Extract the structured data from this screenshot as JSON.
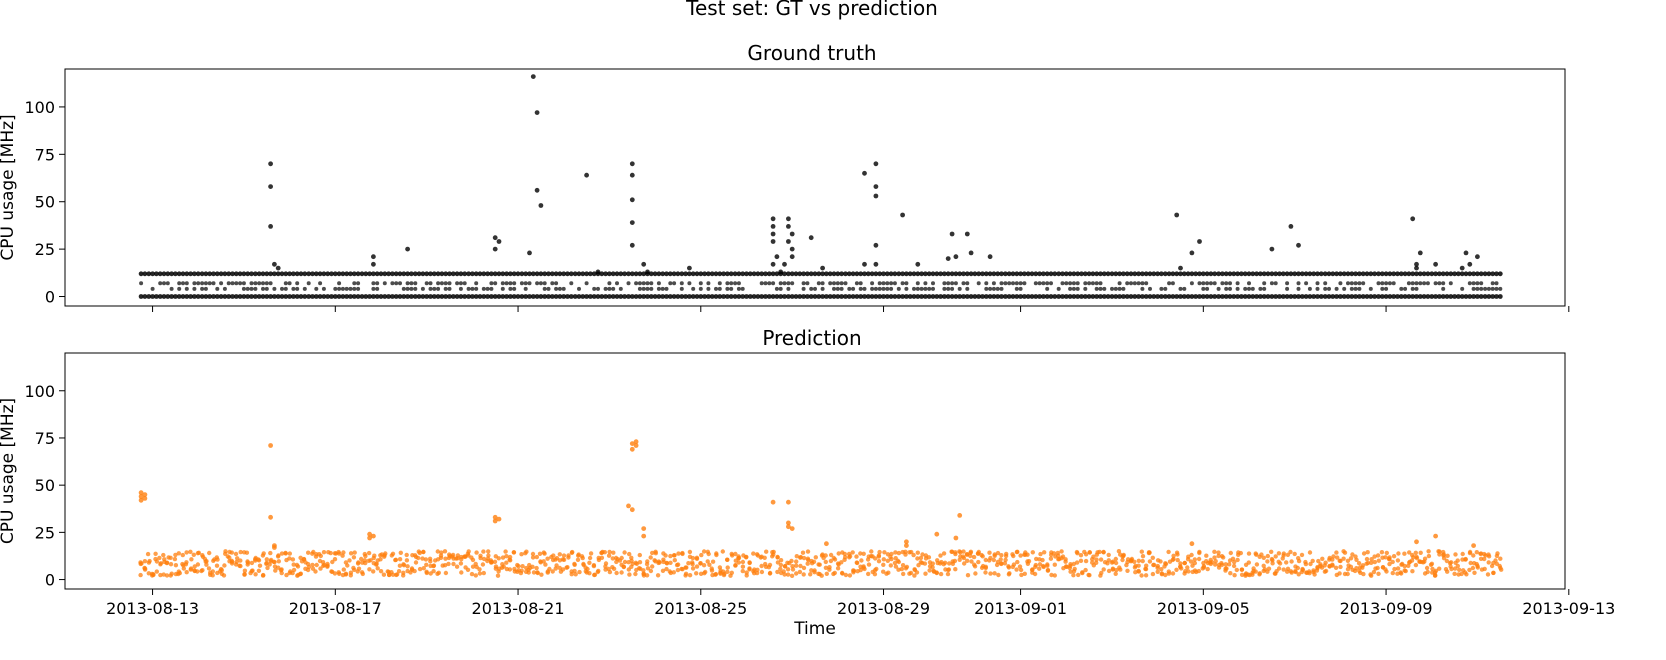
{
  "figure": {
    "suptitle": "Test set: GT vs prediction"
  },
  "chart_data": [
    {
      "type": "scatter",
      "title": "Ground truth",
      "xlabel": "",
      "ylabel": "CPU usage [MHz]",
      "ylim": [
        -5,
        120
      ],
      "xlim": [
        "2013-08-11T02:00",
        "2013-09-12T22:00"
      ],
      "yticks": [
        0,
        25,
        50,
        75,
        100
      ],
      "xticks": [
        "2013-08-13",
        "2013-08-17",
        "2013-08-21",
        "2013-08-25",
        "2013-08-29",
        "2013-09-01",
        "2013-09-05",
        "2013-09-09",
        "2013-09-13"
      ],
      "xtick_labels_visible": false,
      "grid": false,
      "legend": "none",
      "point_color": "#000000",
      "data_range_x": [
        "2013-08-12T18:00",
        "2013-09-11T12:00"
      ],
      "baseline_levels": [
        0,
        12
      ],
      "intermediate_levels": [
        4,
        7
      ],
      "series": [
        {
          "name": "",
          "x": [
            "2013-08-15T14:00",
            "2013-08-15T14:00",
            "2013-08-15T14:00",
            "2013-08-15T16:00",
            "2013-08-15T18:00",
            "2013-08-17T20:00",
            "2013-08-17T20:00",
            "2013-08-18T14:00",
            "2013-08-20T12:00",
            "2013-08-20T12:00",
            "2013-08-20T14:00",
            "2013-08-21T08:00",
            "2013-08-21T10:00",
            "2013-08-21T10:00",
            "2013-08-21T12:00",
            "2013-08-21T06:00",
            "2013-08-22T12:00",
            "2013-08-22T18:00",
            "2013-08-23T12:00",
            "2013-08-23T12:00",
            "2013-08-23T12:00",
            "2013-08-23T12:00",
            "2013-08-23T12:00",
            "2013-08-23T18:00",
            "2013-08-23T20:00",
            "2013-08-24T18:00",
            "2013-08-26T14:00",
            "2013-08-26T14:00",
            "2013-08-26T14:00",
            "2013-08-26T14:00",
            "2013-08-26T14:00",
            "2013-08-26T16:00",
            "2013-08-26T22:00",
            "2013-08-26T22:00",
            "2013-08-26T22:00",
            "2013-08-27T00:00",
            "2013-08-27T00:00",
            "2013-08-27T00:00",
            "2013-08-26T20:00",
            "2013-08-26T18:00",
            "2013-08-27T10:00",
            "2013-08-27T16:00",
            "2013-08-28T14:00",
            "2013-08-28T14:00",
            "2013-08-28T20:00",
            "2013-08-28T20:00",
            "2013-08-28T20:00",
            "2013-08-28T20:00",
            "2013-08-28T20:00",
            "2013-08-29T10:00",
            "2013-08-29T18:00",
            "2013-08-30T10:00",
            "2013-08-30T12:00",
            "2013-08-30T14:00",
            "2013-08-30T20:00",
            "2013-08-30T22:00",
            "2013-08-31T08:00",
            "2013-09-04T10:00",
            "2013-09-04T12:00",
            "2013-09-04T18:00",
            "2013-09-04T22:00",
            "2013-09-06T12:00",
            "2013-09-06T22:00",
            "2013-09-07T02:00",
            "2013-09-09T14:00",
            "2013-09-09T16:00",
            "2013-09-09T16:00",
            "2013-09-09T18:00",
            "2013-09-10T02:00",
            "2013-09-10T16:00",
            "2013-09-10T18:00",
            "2013-09-10T20:00",
            "2013-09-11T00:00"
          ],
          "y": [
            70,
            58,
            37,
            17,
            15,
            17,
            21,
            25,
            31,
            25,
            29,
            116,
            97,
            56,
            48,
            23,
            64,
            13,
            70,
            64,
            51,
            39,
            27,
            17,
            13,
            15,
            17,
            29,
            33,
            37,
            41,
            21,
            41,
            37,
            29,
            33,
            25,
            21,
            17,
            13,
            31,
            15,
            65,
            17,
            70,
            58,
            53,
            27,
            17,
            43,
            17,
            20,
            33,
            21,
            33,
            23,
            21,
            43,
            15,
            23,
            29,
            25,
            37,
            27,
            41,
            17,
            15,
            23,
            17,
            15,
            23,
            17,
            21
          ]
        }
      ]
    },
    {
      "type": "scatter",
      "title": "Prediction",
      "xlabel": "Time",
      "ylabel": "CPU usage [MHz]",
      "ylim": [
        -5,
        120
      ],
      "xlim": [
        "2013-08-11T02:00",
        "2013-09-12T22:00"
      ],
      "yticks": [
        0,
        25,
        50,
        75,
        100
      ],
      "xticks": [
        "2013-08-13",
        "2013-08-17",
        "2013-08-21",
        "2013-08-25",
        "2013-08-29",
        "2013-09-01",
        "2013-09-05",
        "2013-09-09",
        "2013-09-13"
      ],
      "xtick_labels_visible": true,
      "grid": false,
      "legend": "none",
      "point_color": "#ff7f0e",
      "data_range_x": [
        "2013-08-12T18:00",
        "2013-09-11T12:00"
      ],
      "baseline_band": [
        2,
        15
      ],
      "series": [
        {
          "name": "",
          "x": [
            "2013-08-12T18:00",
            "2013-08-12T18:00",
            "2013-08-12T18:00",
            "2013-08-12T20:00",
            "2013-08-12T20:00",
            "2013-08-15T14:00",
            "2013-08-15T14:00",
            "2013-08-15T16:00",
            "2013-08-15T16:00",
            "2013-08-17T18:00",
            "2013-08-17T18:00",
            "2013-08-17T20:00",
            "2013-08-20T12:00",
            "2013-08-20T12:00",
            "2013-08-20T14:00",
            "2013-08-23T12:00",
            "2013-08-23T12:00",
            "2013-08-23T14:00",
            "2013-08-23T14:00",
            "2013-08-23T10:00",
            "2013-08-23T12:00",
            "2013-08-23T18:00",
            "2013-08-23T18:00",
            "2013-08-26T14:00",
            "2013-08-26T22:00",
            "2013-08-26T22:00",
            "2013-08-26T22:00",
            "2013-08-27T00:00",
            "2013-08-27T18:00",
            "2013-08-29T12:00",
            "2013-08-29T12:00",
            "2013-08-30T04:00",
            "2013-08-30T14:00",
            "2013-08-30T16:00",
            "2013-09-04T18:00",
            "2013-09-09T16:00",
            "2013-09-10T02:00",
            "2013-09-10T22:00"
          ],
          "y": [
            42,
            44,
            46,
            43,
            45,
            71,
            33,
            18,
            17,
            22,
            24,
            23,
            31,
            33,
            32,
            69,
            72,
            73,
            71,
            39,
            37,
            23,
            27,
            41,
            41,
            30,
            28,
            27,
            19,
            18,
            20,
            24,
            22,
            34,
            19,
            20,
            23,
            18
          ]
        }
      ]
    }
  ]
}
